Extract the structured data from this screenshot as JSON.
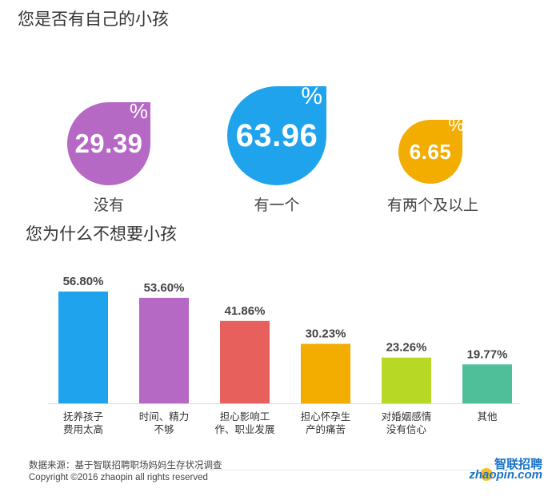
{
  "titles": {
    "q1": "您是否有自己的小孩",
    "q2": "您为什么不想要小孩"
  },
  "percent_sign": "%",
  "drops": [
    {
      "value": "29.39",
      "label": "没有",
      "color": "#b568c4"
    },
    {
      "value": "63.96",
      "label": "有一个",
      "color": "#1fa3ec"
    },
    {
      "value": "6.65",
      "label": "有两个及以上",
      "color": "#f2ad00"
    }
  ],
  "chart_data": [
    {
      "type": "pie",
      "title": "您是否有自己的小孩",
      "categories": [
        "没有",
        "有一个",
        "有两个及以上"
      ],
      "values": [
        29.39,
        63.96,
        6.65
      ],
      "unit": "%"
    },
    {
      "type": "bar",
      "title": "您为什么不想要小孩",
      "categories": [
        [
          "抚养孩子",
          "费用太高"
        ],
        [
          "时间、精力",
          "不够"
        ],
        [
          "担心影响工",
          "作、职业发展"
        ],
        [
          "担心怀孕生",
          "产的痛苦"
        ],
        [
          "对婚姻感情",
          "没有信心"
        ],
        [
          "其他"
        ]
      ],
      "values": [
        56.8,
        53.6,
        41.86,
        30.23,
        23.26,
        19.77
      ],
      "value_labels": [
        "56.80%",
        "53.60%",
        "41.86%",
        "30.23%",
        "23.26%",
        "19.77%"
      ],
      "colors": [
        "#1fa3ec",
        "#b568c4",
        "#e8605c",
        "#f2ad00",
        "#b8d826",
        "#4fbf9a"
      ],
      "ylim": [
        0,
        60
      ],
      "xlabel": "",
      "ylabel": ""
    }
  ],
  "footer": {
    "source": "数据来源：基于智联招聘职场妈妈生存状况调查",
    "copyright": "Copyright ©2016 zhaopin all rights reserved"
  },
  "logo": {
    "cn": "智联招聘",
    "en": "zhaopin.com"
  }
}
